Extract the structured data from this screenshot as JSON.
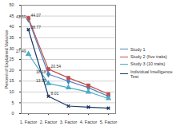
{
  "chart_data": {
    "type": "line",
    "y_label": "Percent of Explained Variance",
    "categories": [
      "1. Factor",
      "2. Factor",
      "3. Factor",
      "4. Factor",
      "5. Factor"
    ],
    "series": [
      {
        "name": "Study 1",
        "color": "#4f81bd",
        "marker": "diamond",
        "values": [
          43.59,
          18.18,
          15,
          12,
          8
        ],
        "value_labels": [
          "43.59",
          "18.18",
          null,
          null,
          null
        ]
      },
      {
        "name": "Study 2 (five traits)",
        "color": "#c0504d",
        "marker": "square",
        "values": [
          44.07,
          20.54,
          16.5,
          13,
          9
        ],
        "value_labels": [
          "44.07",
          "20.54",
          null,
          null,
          null
        ]
      },
      {
        "name": "Study 3 (10 traits)",
        "color": "#4bacc6",
        "marker": "triangle",
        "values": [
          27.49,
          13.95,
          12,
          10,
          7
        ],
        "value_labels": [
          "27.49",
          "13.95",
          null,
          null,
          null
        ]
      },
      {
        "name": "Individual Intelligence Test",
        "color": "#1f3864",
        "marker": "times",
        "values": [
          38.77,
          8.01,
          3.5,
          3,
          2.5
        ],
        "value_labels": [
          "38.77",
          "8.01",
          null,
          null,
          null
        ]
      }
    ],
    "ylim": [
      0,
      50
    ],
    "yticks": [
      0,
      5,
      10,
      15,
      20,
      25,
      30,
      35,
      40,
      45,
      50
    ],
    "grid": true,
    "legend": "right",
    "data_labels": true
  }
}
